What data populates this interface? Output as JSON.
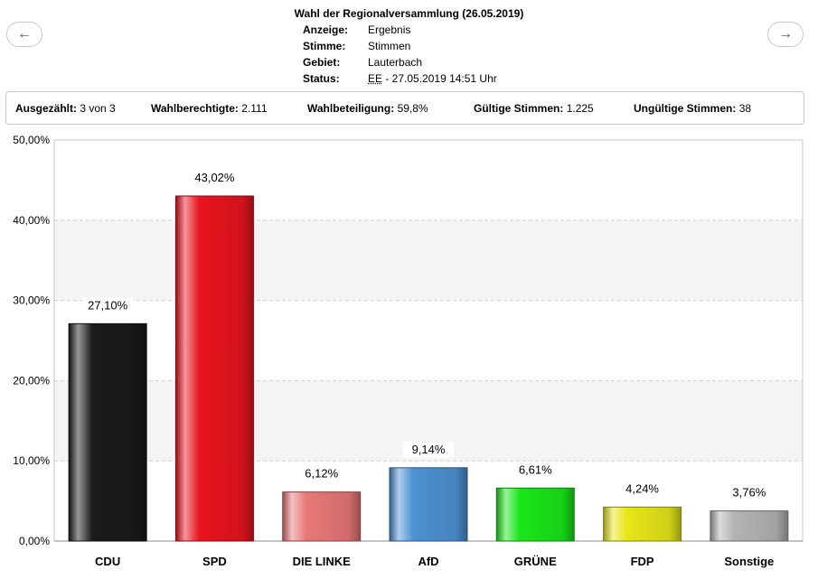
{
  "nav": {
    "prev_symbol": "←",
    "next_symbol": "→"
  },
  "header": {
    "title": "Wahl der Regionalversammlung (26.05.2019)",
    "rows": [
      {
        "label": "Anzeige:",
        "value": "Ergebnis"
      },
      {
        "label": "Stimme:",
        "value": "Stimmen"
      },
      {
        "label": "Gebiet:",
        "value": "Lauterbach"
      },
      {
        "label": "Status:",
        "value_abbr": "EE",
        "value": " - 27.05.2019 14:51 Uhr"
      }
    ]
  },
  "stats": {
    "ausgezaehlt_label": "Ausgezählt:",
    "ausgezaehlt_value": "3 von 3",
    "berechtigte_label": "Wahlberechtigte:",
    "berechtigte_value": "2.111",
    "beteiligung_label": "Wahlbeteiligung:",
    "beteiligung_value": "59,8%",
    "gueltige_label": "Gültige Stimmen:",
    "gueltige_value": "1.225",
    "ungueltige_label": "Ungültige Stimmen:",
    "ungueltige_value": "38"
  },
  "chart_data": {
    "type": "bar",
    "categories": [
      "CDU",
      "SPD",
      "DIE LINKE",
      "AfD",
      "GRÜNE",
      "FDP",
      "Sonstige"
    ],
    "values": [
      27.1,
      43.02,
      6.12,
      9.14,
      6.61,
      4.24,
      3.76
    ],
    "value_labels": [
      "27,10%",
      "43,02%",
      "6,12%",
      "9,14%",
      "6,61%",
      "4,24%",
      "3,76%"
    ],
    "colors": [
      "#1a1a1a",
      "#e8141e",
      "#e87878",
      "#4d92d2",
      "#19e619",
      "#e6e619",
      "#b4b4b4"
    ],
    "ylim": [
      0,
      50
    ],
    "yticks": [
      "0,00%",
      "10,00%",
      "20,00%",
      "30,00%",
      "40,00%",
      "50,00%"
    ],
    "ytick_values": [
      0,
      10,
      20,
      30,
      40,
      50
    ],
    "grid": true,
    "legend": "none"
  }
}
